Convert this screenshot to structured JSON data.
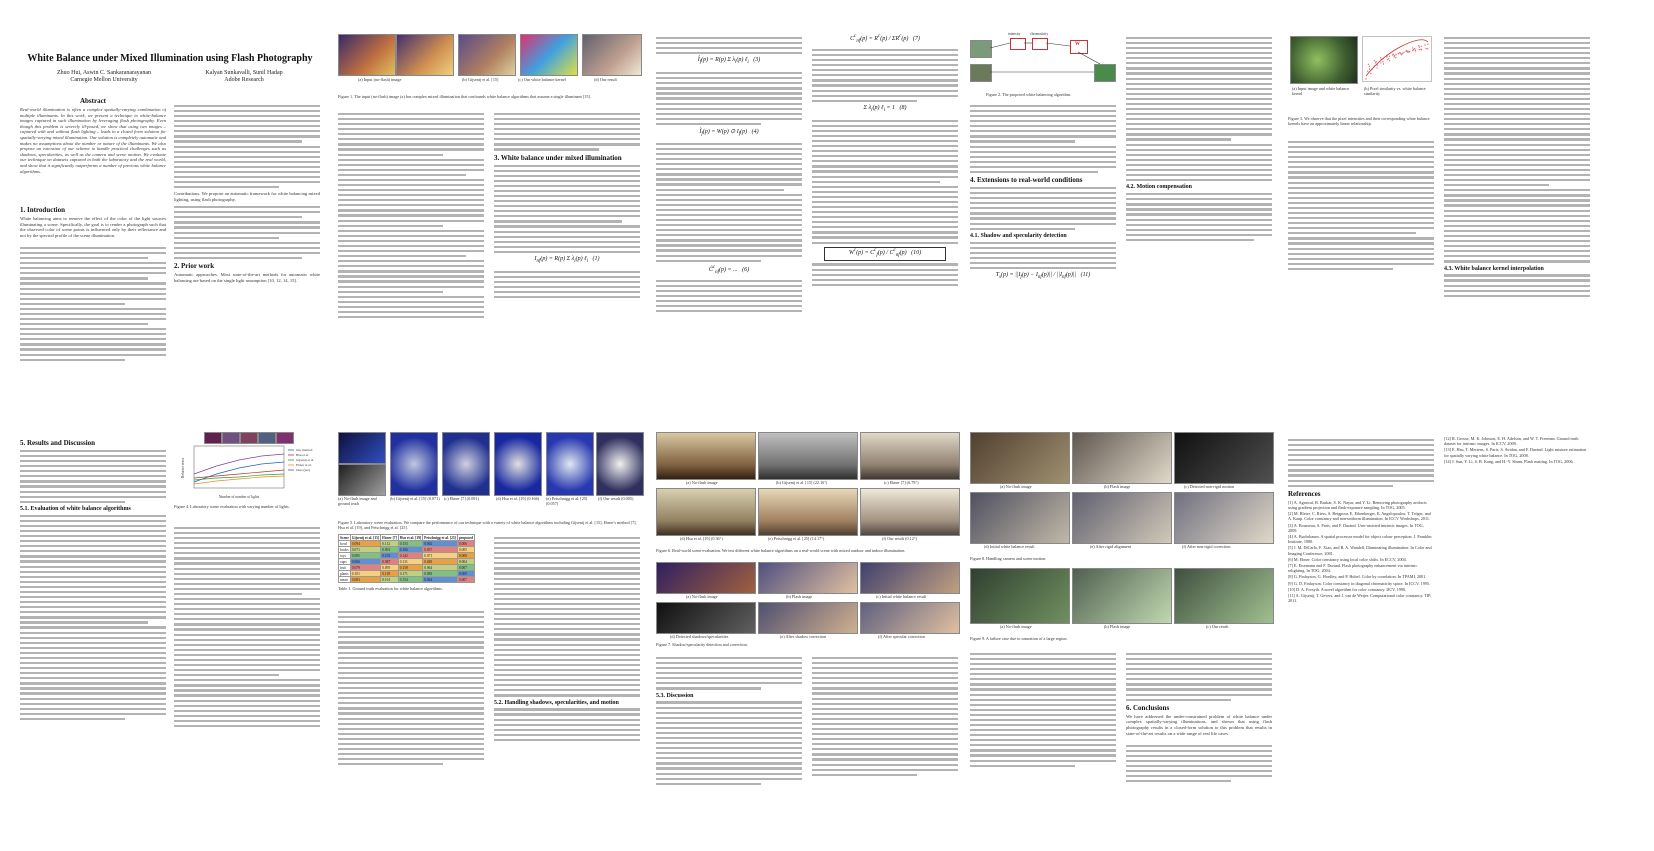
{
  "paper": {
    "title": "White Balance under Mixed Illumination using Flash Photography",
    "authors": [
      {
        "name": "Zhuo Hui, Aswin C. Sankaranarayanan",
        "affil": "Carnegie Mellon University"
      },
      {
        "name": "Kalyan Sunkavalli, Sunil Hadap",
        "affil": "Adobe Research"
      }
    ],
    "abstract_heading": "Abstract",
    "abstract_text": "Real-world illumination is often a complex spatially-varying combination of multiple illuminants. In this work, we present a technique to white-balance images captured in such illumination by leveraging flash photography. Even though this problem is severely ill-posed, we show that using two images – captured with and without flash lighting – leads to a closed form solution for spatially-varying mixed illumination. Our solution is completely automatic and makes no assumptions about the number or nature of the illuminants. We also propose an extension of our scheme to handle practical challenges such as shadows, specularities, as well as the camera and scene motion. We evaluate our technique on datasets captured in both the laboratory and the real world, and show that it significantly outperforms a number of previous white balance algorithms.",
    "sections": {
      "intro": "1. Introduction",
      "prior": "2. Prior work",
      "mixed": "3. White balance under mixed illumination",
      "extensions": "4. Extensions to real-world conditions",
      "shadow": "4.1. Shadow and specularity detection",
      "motion": "4.2. Motion compensation",
      "interp": "4.3. White balance kernel interpolation",
      "results": "5. Results and Discussion",
      "lab": "5.1. Evaluation of white balance algorithms",
      "handling": "5.2. Handling shadows, specularities, and motion",
      "discussion": "5.3. Discussion",
      "conclusions": "6. Conclusions",
      "references": "References"
    },
    "intro_snippet": "White balancing aims to remove the effect of the color of the light sources illuminating a scene. Specifically, the goal is to render a photograph such that the observed color of scene points is influenced only by their reflectance and not by the spectral profile of the scene illumination.",
    "prior_snippet": "Automatic approaches. Most state-of-the-art methods for automatic white balancing are based on the single light assumption [10, 12, 14, 15].",
    "contributions": "Contributions. We propose an automatic framework for white balancing mixed lighting, using flash photography.",
    "conclusion_snippet": "We have addressed the under-constrained problem of white balance under complex spatially-varying illuminations, and shown that using flash photography results in a closed-form solution to this problem that results in state-of-the-art results on a wide range of real life cases."
  },
  "figures": {
    "fig1": {
      "caption": "Figure 1. The input (no-flash) image (a) has complex mixed illumination that confounds white balance algorithms that assume a single illuminant [15].",
      "panels": [
        "(a) Input (no-flash) image",
        "(b) Gijsenij et al. [15]",
        "(c) Our white balance kernel",
        "(d) Our result"
      ]
    },
    "fig2": {
      "caption": "Figure 2. The proposed white balancing algorithm.",
      "nodes": [
        "intensity",
        "chromaticity",
        "Flash",
        "No-flash",
        "W"
      ]
    },
    "fig3": {
      "caption": "Figure 3. We observe that the pixel intensities and their corresponding white balance kernels have an approximately linear relationship.",
      "panels": [
        "(a) Input image and white balance kernel",
        "(b) Pixel similarity vs. white balance similarity"
      ]
    },
    "fig4": {
      "caption": "Figure 4. Laboratory scene evaluation with varying number of lights.",
      "xlabel": "Number of number of lights",
      "ylabel": "Relative error",
      "legend": [
        "Our method",
        "Hsu et al.",
        "Gijsenij et al.",
        "Ebner et al.",
        "Ours (pre)"
      ]
    },
    "fig5": {
      "caption": "Figure 5. Laboratory scene evaluation. We compare the performance of our technique with a variety of white balance algorithms including Gijsenij et al. [15], Ebner's method [7], Hsu et al. [19], and Petschnigg et al. [25].",
      "panels": [
        "(a) No-flash image and ground truth",
        "(b) Gijsenij et al. [15] (0.071)",
        "(c) Ebner [7] (0.091)",
        "(d) Hsu et al. [19] (0.166)",
        "(e) Petschnigg et al. [25] (0.057)",
        "(f) Our result (0.005)"
      ]
    },
    "fig6": {
      "caption": "Figure 6. Real-world scene evaluation. We test different white balance algorithms on a real-world scene with mixed outdoor and indoor illumination.",
      "panels": [
        "(a) No-flash image",
        "(b) Gijsenij et al. [15] (22.16°)",
        "(c) Ebner [7] (6.79°)",
        "(d) Hsu et al. [19] (0.36°)",
        "(e) Petschnigg et al. [25] (14.17°)",
        "(f) Our result (0.12°)"
      ]
    },
    "fig7": {
      "caption": "Figure 7. Shadow/specularity detection and correction.",
      "panels": [
        "(a) No-flash image",
        "(b) Flash image",
        "(c) Initial white balance result",
        "(d) Detected shadows/specularities",
        "(e) After shadow correction",
        "(f) After specular correction"
      ]
    },
    "fig8": {
      "caption": "Figure 8. Handling camera and scene motion.",
      "panels": [
        "(a) No-flash image",
        "(b) Flash image",
        "(c) Detected non-rigid motion",
        "(d) Initial white balance result",
        "(e) After rigid alignment",
        "(f) After non-rigid correction"
      ]
    },
    "fig9": {
      "caption": "Figure 9. A failure case due to saturation of a large region.",
      "panels": [
        "(a) No-flash image",
        "(b) Flash image",
        "(c) Our result"
      ]
    },
    "table1": {
      "caption": "Table 1. Ground truth evaluation for white balance algorithms.",
      "headers": [
        "Scene",
        "Gijsenij et al. [15]",
        "Ebner [7]",
        "Hsu et al. [19]",
        "Petschnigg et al. [25]",
        "proposed"
      ],
      "rows": [
        [
          "bowl",
          "0.094",
          "0.112",
          "0.153",
          "0.062",
          "0.006"
        ],
        [
          "books",
          "0.071",
          "0.091",
          "0.166",
          "0.057",
          "0.005"
        ],
        [
          "toys",
          "0.085",
          "0.103",
          "0.142",
          "0.071",
          "0.008"
        ],
        [
          "cups",
          "0.066",
          "0.087",
          "0.131",
          "0.049",
          "0.004"
        ],
        [
          "fruit",
          "0.079",
          "0.095",
          "0.158",
          "0.064",
          "0.007"
        ],
        [
          "plants",
          "0.101",
          "0.118",
          "0.171",
          "0.083",
          "0.009"
        ],
        [
          "mean",
          "0.083",
          "0.101",
          "0.154",
          "0.064",
          "0.007"
        ]
      ]
    }
  },
  "references": [
    "[1] A. Agrawal, R. Raskar, S. K. Nayar, and Y. Li. Removing photography artifacts using gradient projection and flash-exposure sampling. In TOG, 2005.",
    "[2] M. Bleier, C. Riess, S. Beigpour, E. Eibenberger, E. Angelopoulou, T. Tröger, and A. Kaup. Color constancy and non-uniform illumination. In ICCV Workshops, 2011.",
    "[3] A. Bousseau, S. Paris, and F. Durand. User-assisted intrinsic images. In TOG, 2009.",
    "[4] A. Buchsbaum. A spatial processor model for object colour perception. J. Franklin Institute, 1980.",
    "[5] J. M. DiCarlo, F. Xiao, and B. A. Wandell. Illuminating illumination. In Color and Imaging Conference, 2001.",
    "[6] M. Ebner. Color constancy using local color shifts. In ECCV, 2004.",
    "[7] E. Eisemann and F. Durand. Flash photography enhancement via intrinsic relighting. In TOG, 2004.",
    "[8] G. Finlayson, G. Hordley, and P. Hubel. Color by correlation. In TPAMI, 2001.",
    "[9] G. D. Finlayson. Color constancy in diagonal chromaticity space. In ICCV, 1995.",
    "[10] D. A. Forsyth. A novel algorithm for color constancy. IJCV, 1990.",
    "[11] A. Gijsenij, T. Gevers, and J. van de Weijer. Computational color constancy. TIP, 2011.",
    "[12] R. Grosse, M. K. Johnson, E. H. Adelson, and W. T. Freeman. Ground truth dataset for intrinsic images. In ICCV, 2009.",
    "[13] E. Hsu, T. Mertens, S. Paris, S. Avidan, and F. Durand. Light mixture estimation for spatially varying white balance. In TOG, 2008.",
    "[14] J. Sun, Y. Li, S. B. Kang, and H.-Y. Shum. Flash matting. In TOG, 2006."
  ]
}
